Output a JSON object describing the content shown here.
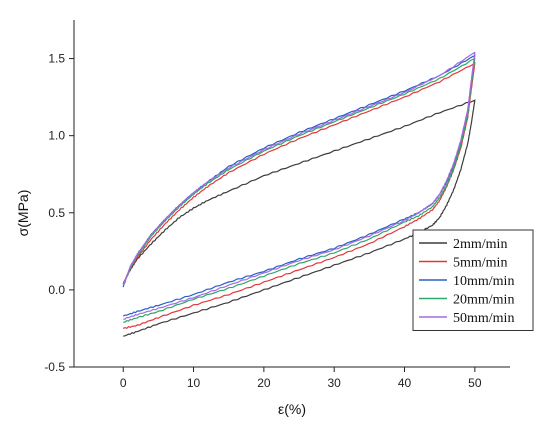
{
  "chart_data": {
    "type": "line",
    "title": "",
    "xlabel": "ε(%)",
    "ylabel": "σ(MPa)",
    "xlim": [
      -7,
      55
    ],
    "ylim": [
      -0.5,
      1.75
    ],
    "xticks": [
      0,
      10,
      20,
      30,
      40,
      50
    ],
    "yticks": [
      -0.5,
      0.0,
      0.5,
      1.0,
      1.5
    ],
    "xtick_labels": [
      "0",
      "10",
      "20",
      "30",
      "40",
      "50"
    ],
    "ytick_labels": [
      "-0.5",
      "0.0",
      "0.5",
      "1.0",
      "1.5"
    ],
    "grid": false,
    "legend_position": "right",
    "series": [
      {
        "name": "2mm/min",
        "color": "#3c3c3c",
        "loading": {
          "x": [
            0,
            1,
            2,
            4,
            6,
            8,
            10,
            12,
            15,
            20,
            25,
            30,
            35,
            40,
            45,
            50
          ],
          "y": [
            0.04,
            0.13,
            0.2,
            0.3,
            0.39,
            0.47,
            0.53,
            0.58,
            0.64,
            0.74,
            0.82,
            0.9,
            0.98,
            1.06,
            1.15,
            1.23
          ]
        },
        "unloading": {
          "x": [
            50,
            49.5,
            49,
            48,
            47,
            46,
            45,
            44,
            42,
            40,
            35,
            30,
            25,
            20,
            15,
            10,
            5,
            2,
            0
          ],
          "y": [
            1.23,
            1.08,
            0.95,
            0.78,
            0.65,
            0.55,
            0.47,
            0.42,
            0.37,
            0.33,
            0.24,
            0.16,
            0.08,
            0.0,
            -0.08,
            -0.15,
            -0.22,
            -0.27,
            -0.3
          ]
        }
      },
      {
        "name": "5mm/min",
        "color": "#e0393c",
        "loading": {
          "x": [
            0,
            1,
            2,
            4,
            6,
            8,
            10,
            12,
            15,
            20,
            25,
            30,
            35,
            40,
            45,
            50
          ],
          "y": [
            0.04,
            0.14,
            0.21,
            0.33,
            0.43,
            0.52,
            0.6,
            0.67,
            0.76,
            0.88,
            0.98,
            1.07,
            1.16,
            1.25,
            1.35,
            1.47
          ]
        },
        "unloading": {
          "x": [
            50,
            49.5,
            49,
            48,
            47,
            46,
            45,
            44,
            42,
            40,
            35,
            30,
            25,
            20,
            15,
            10,
            5,
            2,
            0
          ],
          "y": [
            1.47,
            1.3,
            1.12,
            0.92,
            0.78,
            0.67,
            0.58,
            0.52,
            0.46,
            0.41,
            0.3,
            0.21,
            0.13,
            0.05,
            -0.03,
            -0.1,
            -0.18,
            -0.23,
            -0.25
          ]
        }
      },
      {
        "name": "10mm/min",
        "color": "#2660c8",
        "loading": {
          "x": [
            0,
            1,
            2,
            4,
            6,
            8,
            10,
            12,
            15,
            20,
            25,
            30,
            35,
            40,
            45,
            50
          ],
          "y": [
            0.02,
            0.15,
            0.23,
            0.36,
            0.46,
            0.55,
            0.63,
            0.7,
            0.8,
            0.92,
            1.02,
            1.11,
            1.2,
            1.29,
            1.39,
            1.52
          ]
        },
        "unloading": {
          "x": [
            50,
            49.5,
            49,
            48,
            47,
            46,
            45,
            44,
            42,
            40,
            35,
            30,
            25,
            20,
            15,
            10,
            5,
            2,
            0
          ],
          "y": [
            1.52,
            1.35,
            1.16,
            0.96,
            0.81,
            0.7,
            0.62,
            0.56,
            0.5,
            0.46,
            0.36,
            0.27,
            0.2,
            0.12,
            0.05,
            -0.03,
            -0.1,
            -0.14,
            -0.17
          ]
        }
      },
      {
        "name": "20mm/min",
        "color": "#2ea86a",
        "loading": {
          "x": [
            0,
            1,
            2,
            4,
            6,
            8,
            10,
            12,
            15,
            20,
            25,
            30,
            35,
            40,
            45,
            50
          ],
          "y": [
            0.03,
            0.14,
            0.22,
            0.35,
            0.45,
            0.54,
            0.62,
            0.69,
            0.78,
            0.9,
            1.0,
            1.09,
            1.18,
            1.27,
            1.37,
            1.5
          ]
        },
        "unloading": {
          "x": [
            50,
            49.5,
            49,
            48,
            47,
            46,
            45,
            44,
            42,
            40,
            35,
            30,
            25,
            20,
            15,
            10,
            5,
            2,
            0
          ],
          "y": [
            1.5,
            1.33,
            1.14,
            0.94,
            0.79,
            0.68,
            0.6,
            0.54,
            0.48,
            0.44,
            0.33,
            0.24,
            0.17,
            0.09,
            0.01,
            -0.06,
            -0.14,
            -0.18,
            -0.21
          ]
        }
      },
      {
        "name": "50mm/min",
        "color": "#a66ae0",
        "loading": {
          "x": [
            0,
            1,
            2,
            4,
            6,
            8,
            10,
            12,
            15,
            20,
            25,
            30,
            35,
            40,
            45,
            50
          ],
          "y": [
            0.03,
            0.15,
            0.23,
            0.36,
            0.46,
            0.55,
            0.63,
            0.7,
            0.79,
            0.91,
            1.01,
            1.1,
            1.19,
            1.28,
            1.39,
            1.54
          ]
        },
        "unloading": {
          "x": [
            50,
            49.5,
            49,
            48,
            47,
            46,
            45,
            44,
            42,
            40,
            35,
            30,
            25,
            20,
            15,
            10,
            5,
            2,
            0
          ],
          "y": [
            1.54,
            1.36,
            1.17,
            0.97,
            0.82,
            0.71,
            0.62,
            0.56,
            0.5,
            0.45,
            0.35,
            0.26,
            0.19,
            0.11,
            0.03,
            -0.05,
            -0.12,
            -0.16,
            -0.19
          ]
        }
      }
    ]
  }
}
